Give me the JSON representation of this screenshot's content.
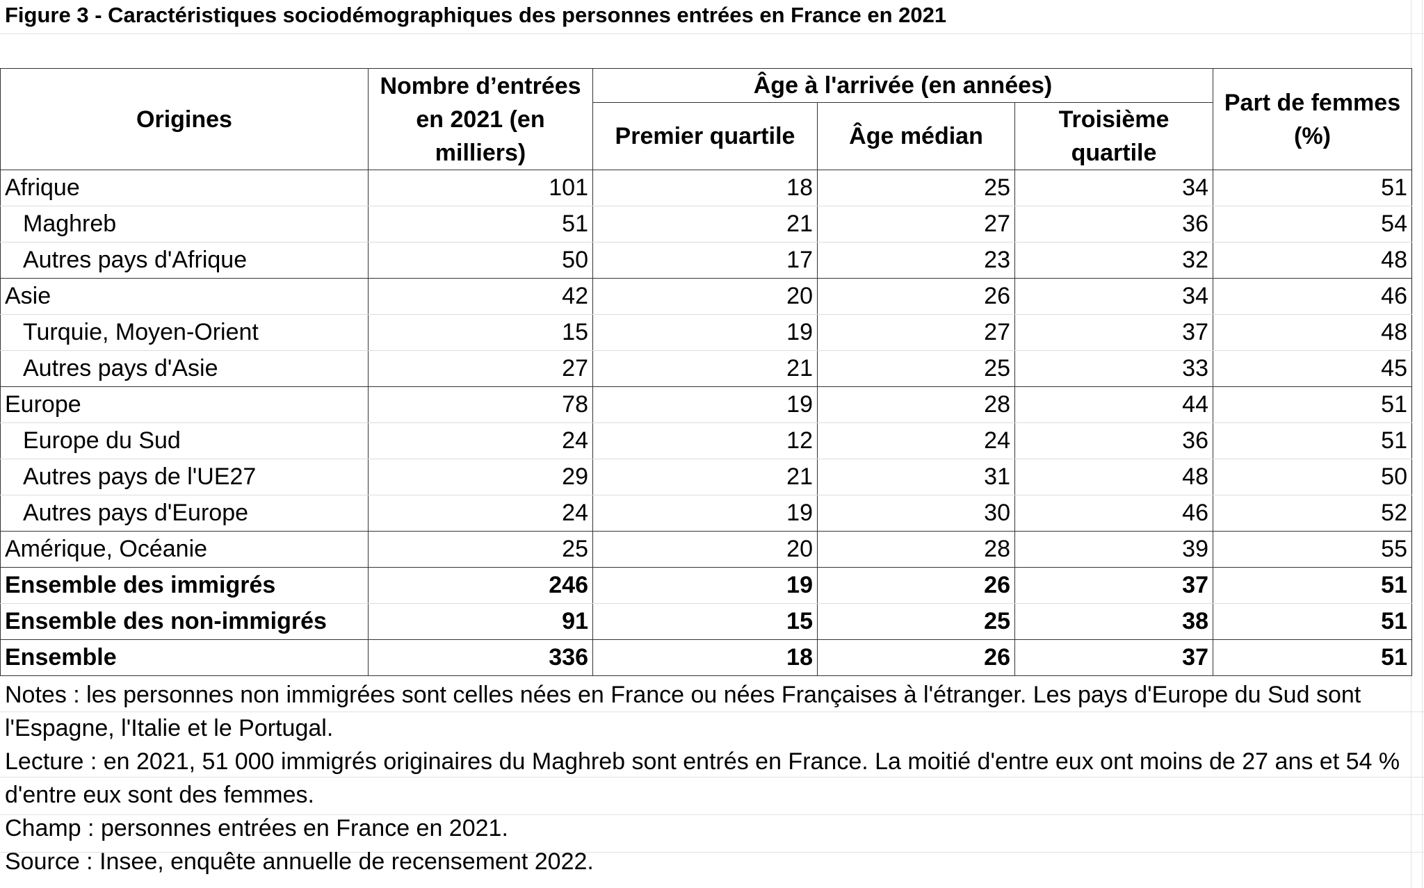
{
  "title": "Figure 3 - Caractéristiques sociodémographiques des personnes entrées en France en 2021",
  "header": {
    "origins": "Origines",
    "entries": "Nombre d’entrées en 2021 (en milliers)",
    "age_group": "Âge à l'arrivée (en années)",
    "q1": "Premier quartile",
    "median": "Âge médian",
    "q3": "Troisième quartile",
    "women": "Part de femmes (%)"
  },
  "rows": [
    {
      "label": "Afrique",
      "entries": "101",
      "q1": "18",
      "median": "25",
      "q3": "34",
      "women": "51"
    },
    {
      "label": "Maghreb",
      "entries": "51",
      "q1": "21",
      "median": "27",
      "q3": "36",
      "women": "54"
    },
    {
      "label": "Autres pays d'Afrique",
      "entries": "50",
      "q1": "17",
      "median": "23",
      "q3": "32",
      "women": "48"
    },
    {
      "label": "Asie",
      "entries": "42",
      "q1": "20",
      "median": "26",
      "q3": "34",
      "women": "46"
    },
    {
      "label": "Turquie, Moyen-Orient",
      "entries": "15",
      "q1": "19",
      "median": "27",
      "q3": "37",
      "women": "48"
    },
    {
      "label": "Autres pays d'Asie",
      "entries": "27",
      "q1": "21",
      "median": "25",
      "q3": "33",
      "women": "45"
    },
    {
      "label": "Europe",
      "entries": "78",
      "q1": "19",
      "median": "28",
      "q3": "44",
      "women": "51"
    },
    {
      "label": "Europe du Sud",
      "entries": "24",
      "q1": "12",
      "median": "24",
      "q3": "36",
      "women": "51"
    },
    {
      "label": "Autres pays de l'UE27",
      "entries": "29",
      "q1": "21",
      "median": "31",
      "q3": "48",
      "women": "50"
    },
    {
      "label": "Autres pays d'Europe",
      "entries": "24",
      "q1": "19",
      "median": "30",
      "q3": "46",
      "women": "52"
    },
    {
      "label": "Amérique, Océanie",
      "entries": "25",
      "q1": "20",
      "median": "28",
      "q3": "39",
      "women": "55"
    },
    {
      "label": "Ensemble des immigrés",
      "entries": "246",
      "q1": "19",
      "median": "26",
      "q3": "37",
      "women": "51"
    },
    {
      "label": "Ensemble des non-immigrés",
      "entries": "91",
      "q1": "15",
      "median": "25",
      "q3": "38",
      "women": "51"
    },
    {
      "label": "Ensemble",
      "entries": "336",
      "q1": "18",
      "median": "26",
      "q3": "37",
      "women": "51"
    }
  ],
  "notes": {
    "notes": "Notes : les personnes non immigrées sont celles nées en France ou nées Françaises à l'étranger. Les pays d'Europe du Sud sont l'Espagne, l'Italie et le Portugal.",
    "lecture": "Lecture : en 2021, 51 000 immigrés originaires du Maghreb sont entrés en France. La moitié d'entre eux ont moins de 27 ans et 54 % d'entre eux sont des femmes.",
    "champ": "Champ : personnes entrées en France en 2021.",
    "source": "Source : Insee, enquête annuelle de recensement 2022."
  }
}
